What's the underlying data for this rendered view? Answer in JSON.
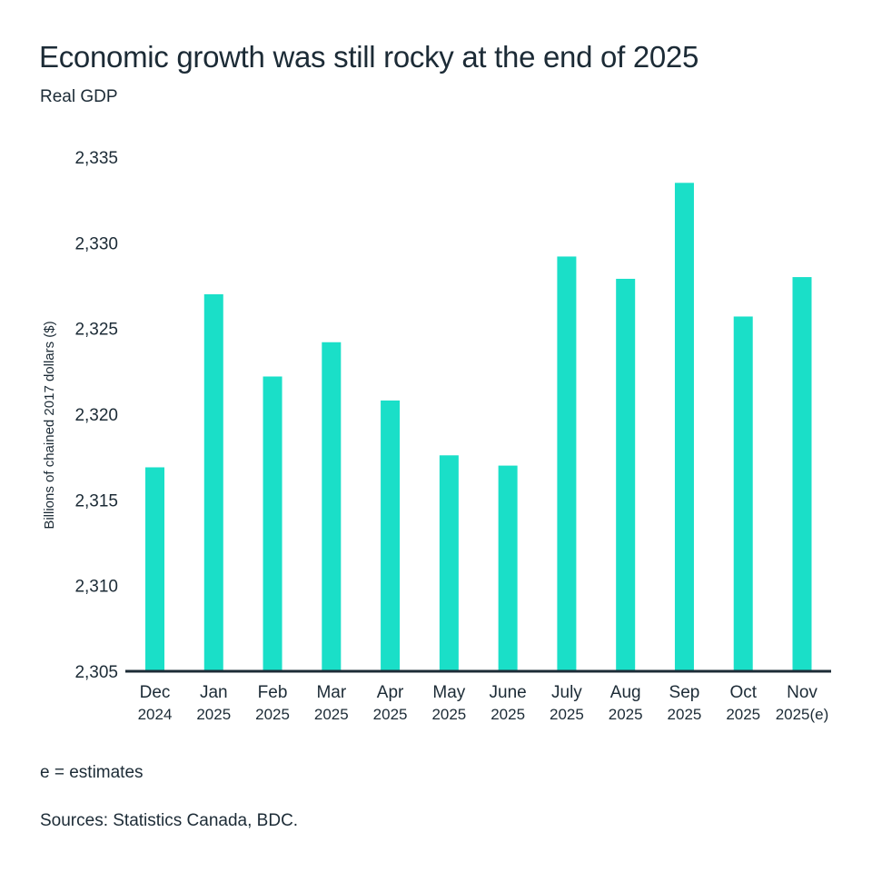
{
  "chart_data": {
    "type": "bar",
    "title": "Economic growth was still rocky at the end of 2025",
    "subtitle": "Real GDP",
    "xlabel": "",
    "ylabel": "Billions of chained 2017 dollars ($)",
    "ylim": [
      2305,
      2335
    ],
    "yticks": [
      2305,
      2310,
      2315,
      2320,
      2325,
      2330,
      2335
    ],
    "ytick_labels": [
      "2,305",
      "2,310",
      "2,315",
      "2,320",
      "2,325",
      "2,330",
      "2,335"
    ],
    "grid": false,
    "categories": [
      {
        "month": "Dec",
        "year": "2024"
      },
      {
        "month": "Jan",
        "year": "2025"
      },
      {
        "month": "Feb",
        "year": "2025"
      },
      {
        "month": "Mar",
        "year": "2025"
      },
      {
        "month": "Apr",
        "year": "2025"
      },
      {
        "month": "May",
        "year": "2025"
      },
      {
        "month": "June",
        "year": "2025"
      },
      {
        "month": "July",
        "year": "2025"
      },
      {
        "month": "Aug",
        "year": "2025"
      },
      {
        "month": "Sep",
        "year": "2025"
      },
      {
        "month": "Oct",
        "year": "2025"
      },
      {
        "month": "Nov",
        "year": "2025(e)"
      }
    ],
    "series": [
      {
        "name": "Real GDP",
        "color": "#1adfc8",
        "values": [
          2316.9,
          2327.0,
          2322.2,
          2324.2,
          2320.8,
          2317.6,
          2317.0,
          2329.2,
          2327.9,
          2333.5,
          2325.7,
          2328.0
        ]
      }
    ],
    "annotations": [
      "e = estimates"
    ]
  },
  "footer": {
    "note": "e = estimates",
    "source": "Sources: Statistics Canada, BDC."
  },
  "colors": {
    "bar": "#1adfc8",
    "axis": "#1c2b36",
    "text": "#1c2b36"
  }
}
